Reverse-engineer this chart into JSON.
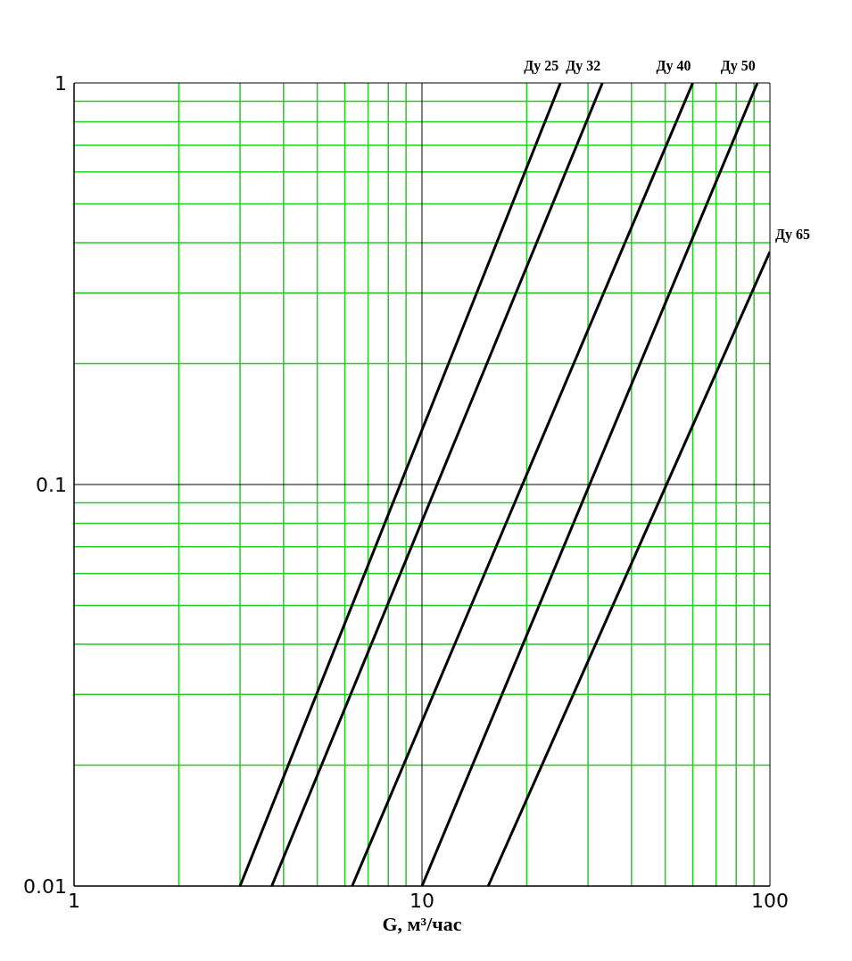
{
  "chart_data": {
    "type": "line",
    "xlabel": "G, м³/час",
    "log": "xy",
    "grid": true,
    "legend": false,
    "marker": "none",
    "line_style": "solid",
    "xlim": [
      1,
      100
    ],
    "ylim": [
      0.01,
      1
    ],
    "xticks": [
      1,
      {
        "value": 2,
        "label": null
      },
      {
        "value": 3,
        "label": null
      },
      {
        "value": 4,
        "label": null
      },
      {
        "value": 5,
        "label": null
      },
      {
        "value": 6,
        "label": null
      },
      {
        "value": 7,
        "label": null
      },
      {
        "value": 8,
        "label": null
      },
      {
        "value": 9,
        "label": null
      },
      10,
      {
        "value": 20,
        "label": null
      },
      {
        "value": 30,
        "label": null
      },
      {
        "value": 40,
        "label": null
      },
      {
        "value": 50,
        "label": null
      },
      {
        "value": 60,
        "label": null
      },
      {
        "value": 70,
        "label": null
      },
      {
        "value": 80,
        "label": null
      },
      {
        "value": 90,
        "label": null
      },
      100
    ],
    "yticks": [
      0.01,
      {
        "value": 0.02,
        "label": null
      },
      {
        "value": 0.03,
        "label": null
      },
      {
        "value": 0.04,
        "label": null
      },
      {
        "value": 0.05,
        "label": null
      },
      {
        "value": 0.06,
        "label": null
      },
      {
        "value": 0.07,
        "label": null
      },
      {
        "value": 0.08,
        "label": null
      },
      {
        "value": 0.09,
        "label": null
      },
      0.1,
      {
        "value": 0.2,
        "label": null
      },
      {
        "value": 0.3,
        "label": null
      },
      {
        "value": 0.4,
        "label": null
      },
      {
        "value": 0.5,
        "label": null
      },
      {
        "value": 0.6,
        "label": null
      },
      {
        "value": 0.7,
        "label": null
      },
      {
        "value": 0.8,
        "label": null
      },
      {
        "value": 0.9,
        "label": null
      },
      1
    ],
    "series": [
      {
        "name": "Ду 25",
        "color": "#000000",
        "x": [
          3,
          25
        ],
        "values": [
          0.01,
          1
        ]
      },
      {
        "name": "Ду 32",
        "color": "#000000",
        "x": [
          3.7,
          33
        ],
        "values": [
          0.01,
          1
        ]
      },
      {
        "name": "Ду 40",
        "color": "#000000",
        "x": [
          6.3,
          60
        ],
        "values": [
          0.01,
          1
        ]
      },
      {
        "name": "Ду 50",
        "color": "#000000",
        "x": [
          10,
          92
        ],
        "values": [
          0.01,
          1
        ]
      },
      {
        "name": "Ду 65",
        "color": "#000000",
        "x": [
          15.5,
          100
        ],
        "values": [
          0.01,
          0.38
        ]
      }
    ]
  }
}
